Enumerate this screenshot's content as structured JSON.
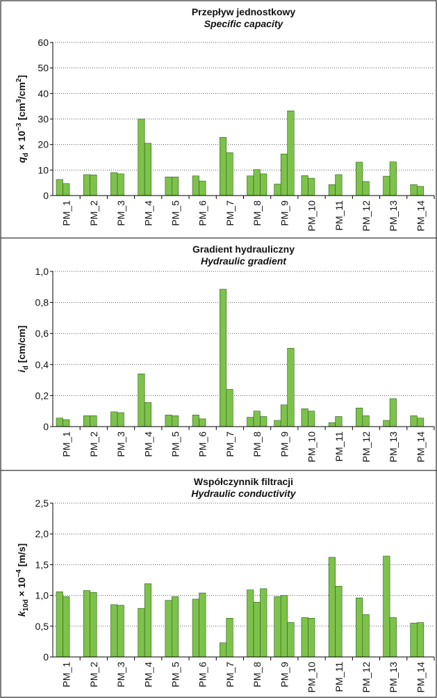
{
  "chart_data": [
    {
      "type": "bar",
      "title": "Przepływ jednostkowy",
      "subtitle": "Specific capacity",
      "ylabel": [
        {
          "text": "q"
        },
        {
          "text": "d",
          "pos": "sub"
        },
        {
          "text": " × 10"
        },
        {
          "text": "−3",
          "pos": "sup"
        },
        {
          "text": " [cm"
        },
        {
          "text": "3",
          "pos": "sup"
        },
        {
          "text": "/cm"
        },
        {
          "text": "2",
          "pos": "sup"
        },
        {
          "text": "]"
        }
      ],
      "categories": [
        "PM_1",
        "PM_2",
        "PM_3",
        "PM_4",
        "PM_5",
        "PM_6",
        "PM_7",
        "PM_8",
        "PM_9",
        "PM_10",
        "PM_11",
        "PM_12",
        "PM_13",
        "PM_14"
      ],
      "series": [
        {
          "color": "#7dc24b",
          "values": [
            6.3,
            8.2,
            9.0,
            30.0,
            7.3,
            7.7,
            22.8,
            7.7,
            4.5,
            7.8,
            4.3,
            13.1,
            7.6,
            4.3
          ]
        },
        {
          "color": "#7dc24b",
          "values": [
            4.7,
            8.1,
            8.5,
            20.5,
            7.3,
            5.7,
            16.8,
            10.2,
            16.3,
            6.8,
            8.2,
            5.5,
            13.2,
            3.6
          ]
        },
        {
          "color": "#7dc24b",
          "values": [
            null,
            null,
            null,
            null,
            null,
            null,
            null,
            8.5,
            33.2,
            null,
            null,
            null,
            null,
            null
          ]
        }
      ],
      "ylim": [
        0,
        60
      ],
      "yticks": [
        0,
        10,
        20,
        30,
        40,
        50,
        60
      ],
      "grid": true
    },
    {
      "type": "bar",
      "title": "Gradient hydrauliczny",
      "subtitle": "Hydraulic gradient",
      "ylabel": [
        {
          "text": "i"
        },
        {
          "text": "d",
          "pos": "sub"
        },
        {
          "text": " [cm/cm]"
        }
      ],
      "categories": [
        "PM_1",
        "PM_2",
        "PM_3",
        "PM_4",
        "PM_5",
        "PM_6",
        "PM_7",
        "PM_8",
        "PM_9",
        "PM_10",
        "PM_11",
        "PM_12",
        "PM_13",
        "PM_14"
      ],
      "series": [
        {
          "color": "#7dc24b",
          "values": [
            0.055,
            0.07,
            0.095,
            0.34,
            0.075,
            0.075,
            0.885,
            0.06,
            0.04,
            0.115,
            0.025,
            0.12,
            0.04,
            0.07
          ]
        },
        {
          "color": "#7dc24b",
          "values": [
            0.045,
            0.07,
            0.09,
            0.155,
            0.07,
            0.05,
            0.24,
            0.1,
            0.14,
            0.1,
            0.065,
            0.07,
            0.18,
            0.055
          ]
        },
        {
          "color": "#7dc24b",
          "values": [
            null,
            null,
            null,
            null,
            null,
            null,
            null,
            0.065,
            0.505,
            null,
            null,
            null,
            null,
            null
          ]
        }
      ],
      "ylim": [
        0,
        1
      ],
      "yticks": [
        0,
        {
          "value": 0.2,
          "label": "0,2"
        },
        {
          "value": 0.4,
          "label": "0,4"
        },
        {
          "value": 0.6,
          "label": "0,6"
        },
        {
          "value": 0.8,
          "label": "0,8"
        },
        {
          "value": 1,
          "label": "1,0"
        }
      ],
      "grid": true
    },
    {
      "type": "bar",
      "title": "Współczynnik filtracji",
      "subtitle": "Hydraulic conductivity",
      "ylabel": [
        {
          "text": "k"
        },
        {
          "text": "10d",
          "pos": "sub"
        },
        {
          "text": " × 10"
        },
        {
          "text": "−4",
          "pos": "sup"
        },
        {
          "text": " [m/s]"
        }
      ],
      "categories": [
        "PM_1",
        "PM_2",
        "PM_3",
        "PM_4",
        "PM_5",
        "PM_6",
        "PM_7",
        "PM_8",
        "PM_9",
        "PM_10",
        "PM_11",
        "PM_12",
        "PM_13",
        "PM_14"
      ],
      "series": [
        {
          "color": "#7dc24b",
          "values": [
            1.06,
            1.08,
            0.85,
            0.79,
            0.92,
            0.94,
            0.23,
            1.09,
            0.98,
            0.64,
            1.62,
            0.96,
            1.64,
            0.55
          ]
        },
        {
          "color": "#7dc24b",
          "values": [
            0.98,
            1.05,
            0.84,
            1.19,
            0.98,
            1.04,
            0.63,
            0.89,
            1.0,
            0.63,
            1.15,
            0.69,
            0.64,
            0.56
          ]
        },
        {
          "color": "#7dc24b",
          "values": [
            null,
            null,
            null,
            null,
            null,
            null,
            null,
            1.11,
            0.56,
            null,
            null,
            null,
            null,
            null
          ]
        }
      ],
      "ylim": [
        0,
        2.5
      ],
      "yticks": [
        0,
        {
          "value": 0.5,
          "label": "0,5"
        },
        {
          "value": 1,
          "label": "1,0"
        },
        {
          "value": 1.5,
          "label": "1,5"
        },
        {
          "value": 2,
          "label": "2,0"
        },
        {
          "value": 2.5,
          "label": "2,5"
        }
      ],
      "grid": true
    }
  ]
}
